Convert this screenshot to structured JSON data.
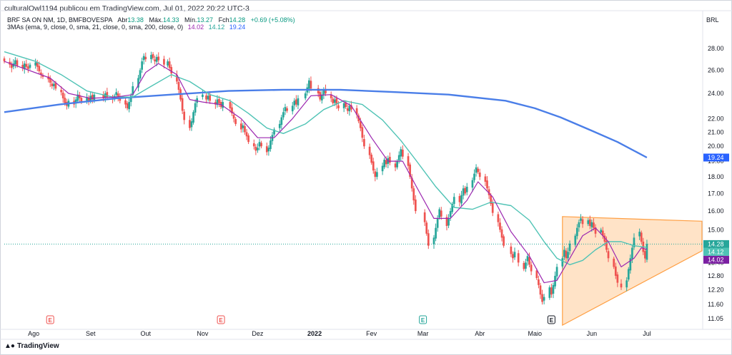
{
  "header": {
    "publisher": "culturalOwl1194 publicou em TradingView.com, Jul 01, 2022 20:22 UTC-3",
    "currency": "BRL",
    "footer_logo": "TradingView"
  },
  "legend": {
    "symbol": "BRF SA ON NM, 1D, BMFBOVESPA",
    "open_label": "Abr",
    "open_value": "13.38",
    "high_label": "Máx.",
    "high_value": "14.33",
    "low_label": "Mín.",
    "low_value": "13.27",
    "close_label": "Fch",
    "close_value": "14.28",
    "change": "+0.69 (+5.08%)",
    "ma_title": "3MAs (ema, 9, close, 0, sma, 21, close, 0, sma, 200, close, 0)",
    "ma_values": [
      "14.02",
      "14.12",
      "19.24"
    ]
  },
  "colors": {
    "up": "#26a69a",
    "down": "#ef5350",
    "ema9": "#9c27b0",
    "sma21": "#4fc3b5",
    "sma200": "#4a7ee8",
    "triangle_fill": "#ffcc99",
    "triangle_stroke": "#ff9f43"
  },
  "chart_data": {
    "type": "candlestick",
    "y_scale": "log",
    "ylim": [
      10.75,
      29.5
    ],
    "y_ticks": [
      "28.00",
      "26.00",
      "24.00",
      "22.00",
      "21.00",
      "20.00",
      "19.00",
      "18.00",
      "17.00",
      "16.00",
      "15.00",
      "14.00",
      "13.40",
      "12.80",
      "12.20",
      "11.60",
      "11.05"
    ],
    "x_labels": [
      "Ago",
      "Set",
      "Out",
      "Nov",
      "Dez",
      "2022",
      "Fev",
      "Mar",
      "Abr",
      "Maio",
      "Jun",
      "Jul"
    ],
    "x_range": [
      "2021-07-16",
      "2022-07-31"
    ],
    "price_badges": [
      {
        "value": 19.24,
        "label": "19.24",
        "color": "#2962ff"
      },
      {
        "value": 14.28,
        "label": "14.28",
        "color": "#26a69a"
      },
      {
        "value": 14.12,
        "label": "14.12",
        "color": "#4fc3b5"
      },
      {
        "value": 14.02,
        "label": "14.02",
        "color": "#7b1fa2"
      }
    ],
    "current_price": 14.28,
    "earnings_markers": [
      {
        "date": "2021-08-10",
        "label": "E",
        "color": "#ef5350"
      },
      {
        "date": "2021-11-11",
        "label": "E",
        "color": "#ef5350"
      },
      {
        "date": "2022-03-01",
        "label": "E",
        "color": "#26a69a"
      },
      {
        "date": "2022-05-10",
        "label": "E",
        "color": "#131722"
      }
    ],
    "triangle_points": [
      {
        "date": "2022-05-16",
        "value": 15.7
      },
      {
        "date": "2022-07-31",
        "value": 15.45
      },
      {
        "date": "2022-07-31",
        "value": 13.95
      },
      {
        "date": "2022-05-16",
        "value": 10.8
      }
    ],
    "closes": [
      [
        "2021-07-16",
        26.8
      ],
      [
        "2021-07-19",
        26.5
      ],
      [
        "2021-07-20",
        26.2
      ],
      [
        "2021-07-21",
        26.6
      ],
      [
        "2021-07-22",
        26.9
      ],
      [
        "2021-07-23",
        26.4
      ],
      [
        "2021-07-26",
        26.2
      ],
      [
        "2021-07-27",
        26.6
      ],
      [
        "2021-07-28",
        26.3
      ],
      [
        "2021-07-29",
        26.1
      ],
      [
        "2021-07-30",
        26.5
      ],
      [
        "2021-08-02",
        26.7
      ],
      [
        "2021-08-03",
        26.3
      ],
      [
        "2021-08-04",
        25.9
      ],
      [
        "2021-08-05",
        25.6
      ],
      [
        "2021-08-06",
        25.4
      ],
      [
        "2021-08-09",
        25.2
      ],
      [
        "2021-08-10",
        24.9
      ],
      [
        "2021-08-11",
        24.6
      ],
      [
        "2021-08-12",
        24.8
      ],
      [
        "2021-08-13",
        24.4
      ],
      [
        "2021-08-16",
        24.1
      ],
      [
        "2021-08-17",
        23.6
      ],
      [
        "2021-08-18",
        23.2
      ],
      [
        "2021-08-19",
        23.0
      ],
      [
        "2021-08-20",
        23.4
      ],
      [
        "2021-08-23",
        23.1
      ],
      [
        "2021-08-24",
        23.5
      ],
      [
        "2021-08-25",
        23.9
      ],
      [
        "2021-08-26",
        23.6
      ],
      [
        "2021-08-27",
        23.3
      ],
      [
        "2021-08-30",
        23.7
      ],
      [
        "2021-08-31",
        23.4
      ],
      [
        "2021-09-01",
        23.8
      ],
      [
        "2021-09-02",
        23.5
      ],
      [
        "2021-09-03",
        23.9
      ],
      [
        "2021-09-08",
        23.6
      ],
      [
        "2021-09-09",
        24.0
      ],
      [
        "2021-09-10",
        23.7
      ],
      [
        "2021-09-13",
        23.5
      ],
      [
        "2021-09-14",
        23.8
      ],
      [
        "2021-09-15",
        24.1
      ],
      [
        "2021-09-16",
        23.7
      ],
      [
        "2021-09-17",
        23.4
      ],
      [
        "2021-09-20",
        23.1
      ],
      [
        "2021-09-21",
        22.8
      ],
      [
        "2021-09-22",
        23.3
      ],
      [
        "2021-09-23",
        23.8
      ],
      [
        "2021-09-24",
        24.6
      ],
      [
        "2021-09-27",
        25.3
      ],
      [
        "2021-09-28",
        26.0
      ],
      [
        "2021-09-29",
        26.8
      ],
      [
        "2021-09-30",
        27.3
      ],
      [
        "2021-10-01",
        27.0
      ],
      [
        "2021-10-04",
        27.4
      ],
      [
        "2021-10-05",
        27.1
      ],
      [
        "2021-10-06",
        26.8
      ],
      [
        "2021-10-07",
        27.2
      ],
      [
        "2021-10-08",
        26.9
      ],
      [
        "2021-10-11",
        26.5
      ],
      [
        "2021-10-13",
        26.8
      ],
      [
        "2021-10-14",
        26.2
      ],
      [
        "2021-10-15",
        25.7
      ],
      [
        "2021-10-18",
        25.0
      ],
      [
        "2021-10-19",
        24.3
      ],
      [
        "2021-10-20",
        23.5
      ],
      [
        "2021-10-21",
        22.6
      ],
      [
        "2021-10-22",
        21.9
      ],
      [
        "2021-10-25",
        21.3
      ],
      [
        "2021-10-26",
        21.8
      ],
      [
        "2021-10-27",
        22.5
      ],
      [
        "2021-10-28",
        23.2
      ],
      [
        "2021-10-29",
        23.6
      ],
      [
        "2021-11-01",
        23.9
      ],
      [
        "2021-11-03",
        23.5
      ],
      [
        "2021-11-04",
        23.8
      ],
      [
        "2021-11-05",
        23.4
      ],
      [
        "2021-11-08",
        23.1
      ],
      [
        "2021-11-09",
        23.5
      ],
      [
        "2021-11-10",
        23.2
      ],
      [
        "2021-11-11",
        22.9
      ],
      [
        "2021-11-12",
        23.3
      ],
      [
        "2021-11-16",
        22.8
      ],
      [
        "2021-11-17",
        22.4
      ],
      [
        "2021-11-18",
        22.0
      ],
      [
        "2021-11-19",
        21.6
      ],
      [
        "2021-11-22",
        21.2
      ],
      [
        "2021-11-23",
        21.5
      ],
      [
        "2021-11-24",
        21.0
      ],
      [
        "2021-11-25",
        20.7
      ],
      [
        "2021-11-26",
        20.3
      ],
      [
        "2021-11-29",
        20.0
      ],
      [
        "2021-11-30",
        19.7
      ],
      [
        "2021-12-01",
        19.9
      ],
      [
        "2021-12-02",
        20.3
      ],
      [
        "2021-12-03",
        20.0
      ],
      [
        "2021-12-06",
        19.6
      ],
      [
        "2021-12-07",
        19.9
      ],
      [
        "2021-12-08",
        20.4
      ],
      [
        "2021-12-09",
        20.8
      ],
      [
        "2021-12-10",
        21.2
      ],
      [
        "2021-12-13",
        21.6
      ],
      [
        "2021-12-14",
        22.1
      ],
      [
        "2021-12-15",
        22.5
      ],
      [
        "2021-12-16",
        22.9
      ],
      [
        "2021-12-17",
        22.6
      ],
      [
        "2021-12-20",
        23.0
      ],
      [
        "2021-12-21",
        23.4
      ],
      [
        "2021-12-22",
        23.1
      ],
      [
        "2021-12-23",
        23.6
      ],
      [
        "2021-12-27",
        24.0
      ],
      [
        "2021-12-28",
        24.5
      ],
      [
        "2021-12-29",
        25.1
      ],
      [
        "2021-12-30",
        24.4
      ],
      [
        "2022-01-03",
        24.0
      ],
      [
        "2022-01-04",
        23.5
      ],
      [
        "2022-01-05",
        23.9
      ],
      [
        "2022-01-06",
        24.3
      ],
      [
        "2022-01-07",
        24.0
      ],
      [
        "2022-01-10",
        23.6
      ],
      [
        "2022-01-11",
        23.2
      ],
      [
        "2022-01-12",
        23.5
      ],
      [
        "2022-01-13",
        23.1
      ],
      [
        "2022-01-14",
        22.8
      ],
      [
        "2022-01-17",
        23.2
      ],
      [
        "2022-01-18",
        22.9
      ],
      [
        "2022-01-19",
        22.6
      ],
      [
        "2022-01-20",
        23.0
      ],
      [
        "2022-01-21",
        22.7
      ],
      [
        "2022-01-24",
        22.3
      ],
      [
        "2022-01-25",
        21.8
      ],
      [
        "2022-01-26",
        21.3
      ],
      [
        "2022-01-27",
        20.6
      ],
      [
        "2022-01-28",
        20.0
      ],
      [
        "2022-01-31",
        19.4
      ],
      [
        "2022-02-01",
        18.9
      ],
      [
        "2022-02-02",
        18.4
      ],
      [
        "2022-02-03",
        18.0
      ],
      [
        "2022-02-04",
        18.3
      ],
      [
        "2022-02-07",
        18.7
      ],
      [
        "2022-02-08",
        19.1
      ],
      [
        "2022-02-09",
        18.8
      ],
      [
        "2022-02-10",
        19.2
      ],
      [
        "2022-02-11",
        18.9
      ],
      [
        "2022-02-14",
        18.6
      ],
      [
        "2022-02-15",
        19.0
      ],
      [
        "2022-02-16",
        19.4
      ],
      [
        "2022-02-17",
        19.8
      ],
      [
        "2022-02-18",
        19.3
      ],
      [
        "2022-02-21",
        18.7
      ],
      [
        "2022-02-22",
        18.0
      ],
      [
        "2022-02-23",
        17.3
      ],
      [
        "2022-02-24",
        16.6
      ],
      [
        "2022-02-25",
        16.0
      ],
      [
        "2022-03-02",
        15.4
      ],
      [
        "2022-03-03",
        14.8
      ],
      [
        "2022-03-04",
        14.2
      ],
      [
        "2022-03-07",
        14.6
      ],
      [
        "2022-03-08",
        15.1
      ],
      [
        "2022-03-09",
        15.6
      ],
      [
        "2022-03-10",
        16.1
      ],
      [
        "2022-03-11",
        15.7
      ],
      [
        "2022-03-14",
        15.2
      ],
      [
        "2022-03-15",
        15.6
      ],
      [
        "2022-03-16",
        16.0
      ],
      [
        "2022-03-17",
        16.4
      ],
      [
        "2022-03-18",
        16.8
      ],
      [
        "2022-03-21",
        16.5
      ],
      [
        "2022-03-22",
        16.9
      ],
      [
        "2022-03-23",
        17.3
      ],
      [
        "2022-03-24",
        17.0
      ],
      [
        "2022-03-25",
        17.4
      ],
      [
        "2022-03-28",
        17.8
      ],
      [
        "2022-03-29",
        18.2
      ],
      [
        "2022-03-30",
        18.6
      ],
      [
        "2022-03-31",
        18.3
      ],
      [
        "2022-04-01",
        18.0
      ],
      [
        "2022-04-04",
        17.7
      ],
      [
        "2022-04-05",
        17.3
      ],
      [
        "2022-04-06",
        16.9
      ],
      [
        "2022-04-07",
        16.4
      ],
      [
        "2022-04-08",
        15.9
      ],
      [
        "2022-04-11",
        15.4
      ],
      [
        "2022-04-12",
        15.0
      ],
      [
        "2022-04-13",
        14.6
      ],
      [
        "2022-04-14",
        14.2
      ],
      [
        "2022-04-18",
        13.8
      ],
      [
        "2022-04-19",
        13.6
      ],
      [
        "2022-04-20",
        13.9
      ],
      [
        "2022-04-22",
        13.4
      ],
      [
        "2022-04-25",
        13.1
      ],
      [
        "2022-04-26",
        13.4
      ],
      [
        "2022-04-27",
        13.7
      ],
      [
        "2022-04-28",
        13.3
      ],
      [
        "2022-04-29",
        13.0
      ],
      [
        "2022-05-02",
        12.7
      ],
      [
        "2022-05-03",
        12.4
      ],
      [
        "2022-05-04",
        12.0
      ],
      [
        "2022-05-05",
        11.7
      ],
      [
        "2022-05-06",
        11.9
      ],
      [
        "2022-05-09",
        12.3
      ],
      [
        "2022-05-10",
        12.0
      ],
      [
        "2022-05-11",
        12.4
      ],
      [
        "2022-05-12",
        12.8
      ],
      [
        "2022-05-13",
        13.2
      ],
      [
        "2022-05-16",
        13.6
      ],
      [
        "2022-05-17",
        14.0
      ],
      [
        "2022-05-18",
        13.6
      ],
      [
        "2022-05-19",
        13.9
      ],
      [
        "2022-05-20",
        14.3
      ],
      [
        "2022-05-23",
        14.7
      ],
      [
        "2022-05-24",
        15.1
      ],
      [
        "2022-05-25",
        15.4
      ],
      [
        "2022-05-26",
        15.6
      ],
      [
        "2022-05-27",
        15.3
      ],
      [
        "2022-05-30",
        15.5
      ],
      [
        "2022-05-31",
        15.2
      ],
      [
        "2022-06-01",
        15.4
      ],
      [
        "2022-06-02",
        15.1
      ],
      [
        "2022-06-03",
        14.8
      ],
      [
        "2022-06-06",
        15.0
      ],
      [
        "2022-06-07",
        14.7
      ],
      [
        "2022-06-08",
        14.4
      ],
      [
        "2022-06-09",
        14.0
      ],
      [
        "2022-06-10",
        13.6
      ],
      [
        "2022-06-13",
        13.2
      ],
      [
        "2022-06-14",
        12.8
      ],
      [
        "2022-06-15",
        12.5
      ],
      [
        "2022-06-17",
        12.3
      ],
      [
        "2022-06-20",
        12.6
      ],
      [
        "2022-06-21",
        13.1
      ],
      [
        "2022-06-22",
        13.6
      ],
      [
        "2022-06-23",
        14.1
      ],
      [
        "2022-06-24",
        14.6
      ],
      [
        "2022-06-27",
        14.9
      ],
      [
        "2022-06-28",
        14.4
      ],
      [
        "2022-06-29",
        13.9
      ],
      [
        "2022-06-30",
        13.59
      ],
      [
        "2022-07-01",
        14.28
      ]
    ],
    "ema9_values": [
      [
        "2021-07-16",
        26.8
      ],
      [
        "2021-08-10",
        25.3
      ],
      [
        "2021-08-20",
        24.0
      ],
      [
        "2021-09-01",
        23.6
      ],
      [
        "2021-09-15",
        23.7
      ],
      [
        "2021-09-24",
        23.9
      ],
      [
        "2021-10-01",
        25.8
      ],
      [
        "2021-10-08",
        26.6
      ],
      [
        "2021-10-18",
        25.6
      ],
      [
        "2021-10-25",
        23.5
      ],
      [
        "2021-11-01",
        23.3
      ],
      [
        "2021-11-11",
        23.1
      ],
      [
        "2021-11-22",
        22.0
      ],
      [
        "2021-12-01",
        20.6
      ],
      [
        "2021-12-10",
        20.6
      ],
      [
        "2021-12-20",
        22.0
      ],
      [
        "2021-12-30",
        23.8
      ],
      [
        "2022-01-10",
        23.9
      ],
      [
        "2022-01-21",
        23.0
      ],
      [
        "2022-02-01",
        20.6
      ],
      [
        "2022-02-10",
        19.0
      ],
      [
        "2022-02-18",
        19.0
      ],
      [
        "2022-02-25",
        17.5
      ],
      [
        "2022-03-07",
        15.6
      ],
      [
        "2022-03-16",
        15.6
      ],
      [
        "2022-03-25",
        16.6
      ],
      [
        "2022-03-31",
        17.7
      ],
      [
        "2022-04-08",
        16.8
      ],
      [
        "2022-04-18",
        14.9
      ],
      [
        "2022-04-28",
        13.7
      ],
      [
        "2022-05-06",
        12.5
      ],
      [
        "2022-05-13",
        12.6
      ],
      [
        "2022-05-20",
        13.6
      ],
      [
        "2022-05-27",
        14.7
      ],
      [
        "2022-06-03",
        15.1
      ],
      [
        "2022-06-10",
        14.4
      ],
      [
        "2022-06-17",
        13.2
      ],
      [
        "2022-06-24",
        13.6
      ],
      [
        "2022-06-28",
        14.1
      ],
      [
        "2022-07-01",
        14.02
      ]
    ],
    "sma21_values": [
      [
        "2021-07-16",
        27.7
      ],
      [
        "2021-08-02",
        26.8
      ],
      [
        "2021-08-16",
        25.6
      ],
      [
        "2021-08-30",
        24.2
      ],
      [
        "2021-09-13",
        23.7
      ],
      [
        "2021-09-24",
        23.7
      ],
      [
        "2021-10-04",
        24.6
      ],
      [
        "2021-10-15",
        25.6
      ],
      [
        "2021-10-25",
        25.0
      ],
      [
        "2021-11-05",
        23.9
      ],
      [
        "2021-11-16",
        23.4
      ],
      [
        "2021-11-26",
        22.4
      ],
      [
        "2021-12-06",
        21.3
      ],
      [
        "2021-12-15",
        20.9
      ],
      [
        "2021-12-27",
        21.6
      ],
      [
        "2022-01-06",
        22.7
      ],
      [
        "2022-01-17",
        23.4
      ],
      [
        "2022-01-27",
        23.1
      ],
      [
        "2022-02-07",
        21.9
      ],
      [
        "2022-02-17",
        20.4
      ],
      [
        "2022-02-25",
        19.1
      ],
      [
        "2022-03-08",
        17.4
      ],
      [
        "2022-03-18",
        16.2
      ],
      [
        "2022-03-28",
        16.1
      ],
      [
        "2022-04-07",
        16.5
      ],
      [
        "2022-04-18",
        16.3
      ],
      [
        "2022-04-28",
        15.5
      ],
      [
        "2022-05-06",
        14.4
      ],
      [
        "2022-05-13",
        13.6
      ],
      [
        "2022-05-20",
        13.3
      ],
      [
        "2022-05-27",
        13.5
      ],
      [
        "2022-06-03",
        14.0
      ],
      [
        "2022-06-10",
        14.4
      ],
      [
        "2022-06-17",
        14.4
      ],
      [
        "2022-06-24",
        14.2
      ],
      [
        "2022-07-01",
        14.12
      ]
    ],
    "sma200_values": [
      [
        "2021-07-16",
        22.5
      ],
      [
        "2021-08-15",
        23.1
      ],
      [
        "2021-09-15",
        23.6
      ],
      [
        "2021-10-15",
        23.9
      ],
      [
        "2021-11-15",
        24.2
      ],
      [
        "2021-12-15",
        24.3
      ],
      [
        "2022-01-15",
        24.3
      ],
      [
        "2022-02-15",
        24.1
      ],
      [
        "2022-03-15",
        23.9
      ],
      [
        "2022-04-15",
        23.4
      ],
      [
        "2022-05-01",
        22.8
      ],
      [
        "2022-05-15",
        22.1
      ],
      [
        "2022-06-01",
        21.1
      ],
      [
        "2022-06-15",
        20.3
      ],
      [
        "2022-07-01",
        19.24
      ]
    ]
  }
}
